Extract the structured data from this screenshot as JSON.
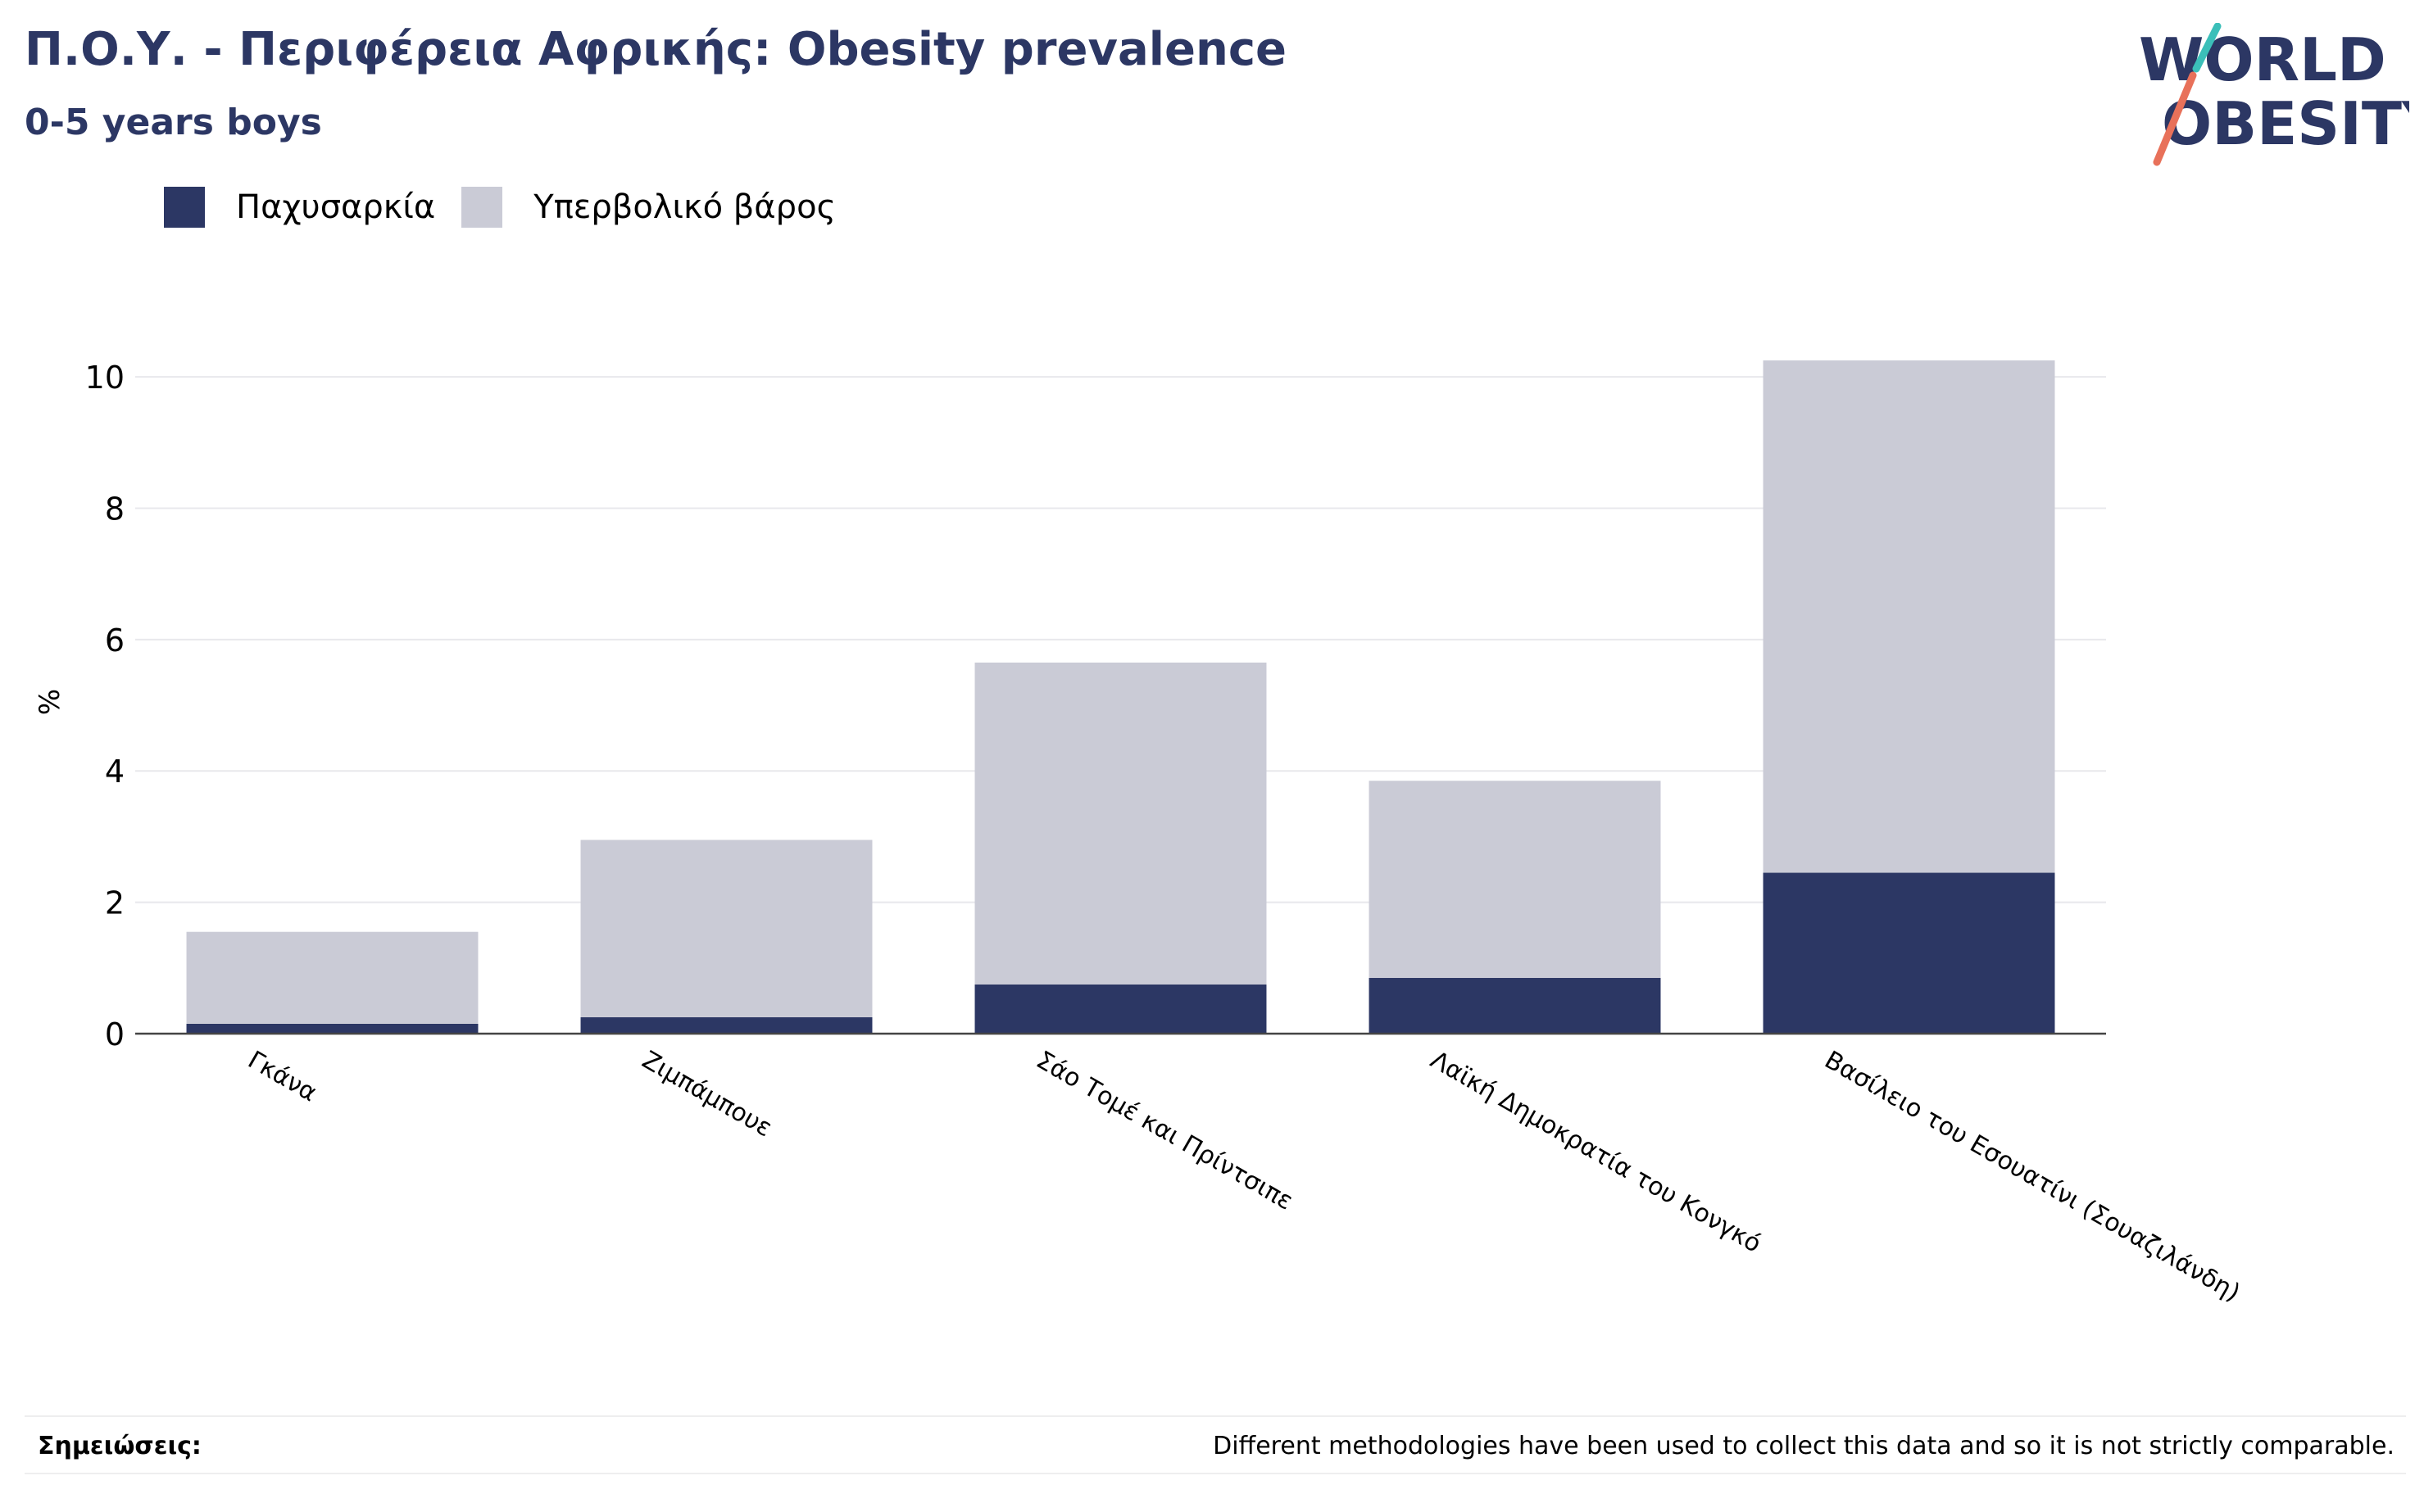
{
  "title": "Π.Ο.Υ. - Περιφέρεια Αφρικής: Obesity prevalence",
  "subtitle": "0-5 years boys",
  "logo": {
    "line1": "WORLD",
    "line2": "OBESITY"
  },
  "colors": {
    "obesity": "#2c3764",
    "overweight": "#cacbd6",
    "title": "#2c3764",
    "logo_teal": "#3bbfb9",
    "logo_coral": "#e8715a"
  },
  "legend": [
    {
      "label": "Παχυσαρκία",
      "color": "#2c3764"
    },
    {
      "label": "Υπερβολικό βάρος",
      "color": "#cacbd6"
    }
  ],
  "chart_data": {
    "type": "bar",
    "stacked": true,
    "categories": [
      "Γκάνα",
      "Ζιμπάμπουε",
      "Σάο Τομέ και Πρίντσιπε",
      "Λαϊκή Δημοκρατία του Κονγκό",
      "Βασίλειο του Εσουατίνι (Σουαζιλάνδη)"
    ],
    "series": [
      {
        "name": "Παχυσαρκία",
        "values": [
          0.15,
          0.25,
          0.75,
          0.85,
          2.45
        ]
      },
      {
        "name": "Υπερβολικό βάρος",
        "values": [
          1.4,
          2.7,
          4.9,
          3.0,
          7.8
        ]
      }
    ],
    "ylabel": "%",
    "ylim": [
      0,
      10.5
    ],
    "yticks": [
      0,
      2,
      4,
      6,
      8,
      10
    ],
    "grid": true,
    "legend_position": "top-left"
  },
  "footer": {
    "notes_label": "Σημειώσεις:",
    "notes_text": "Different methodologies have been used to collect this data and so it is not strictly comparable."
  }
}
